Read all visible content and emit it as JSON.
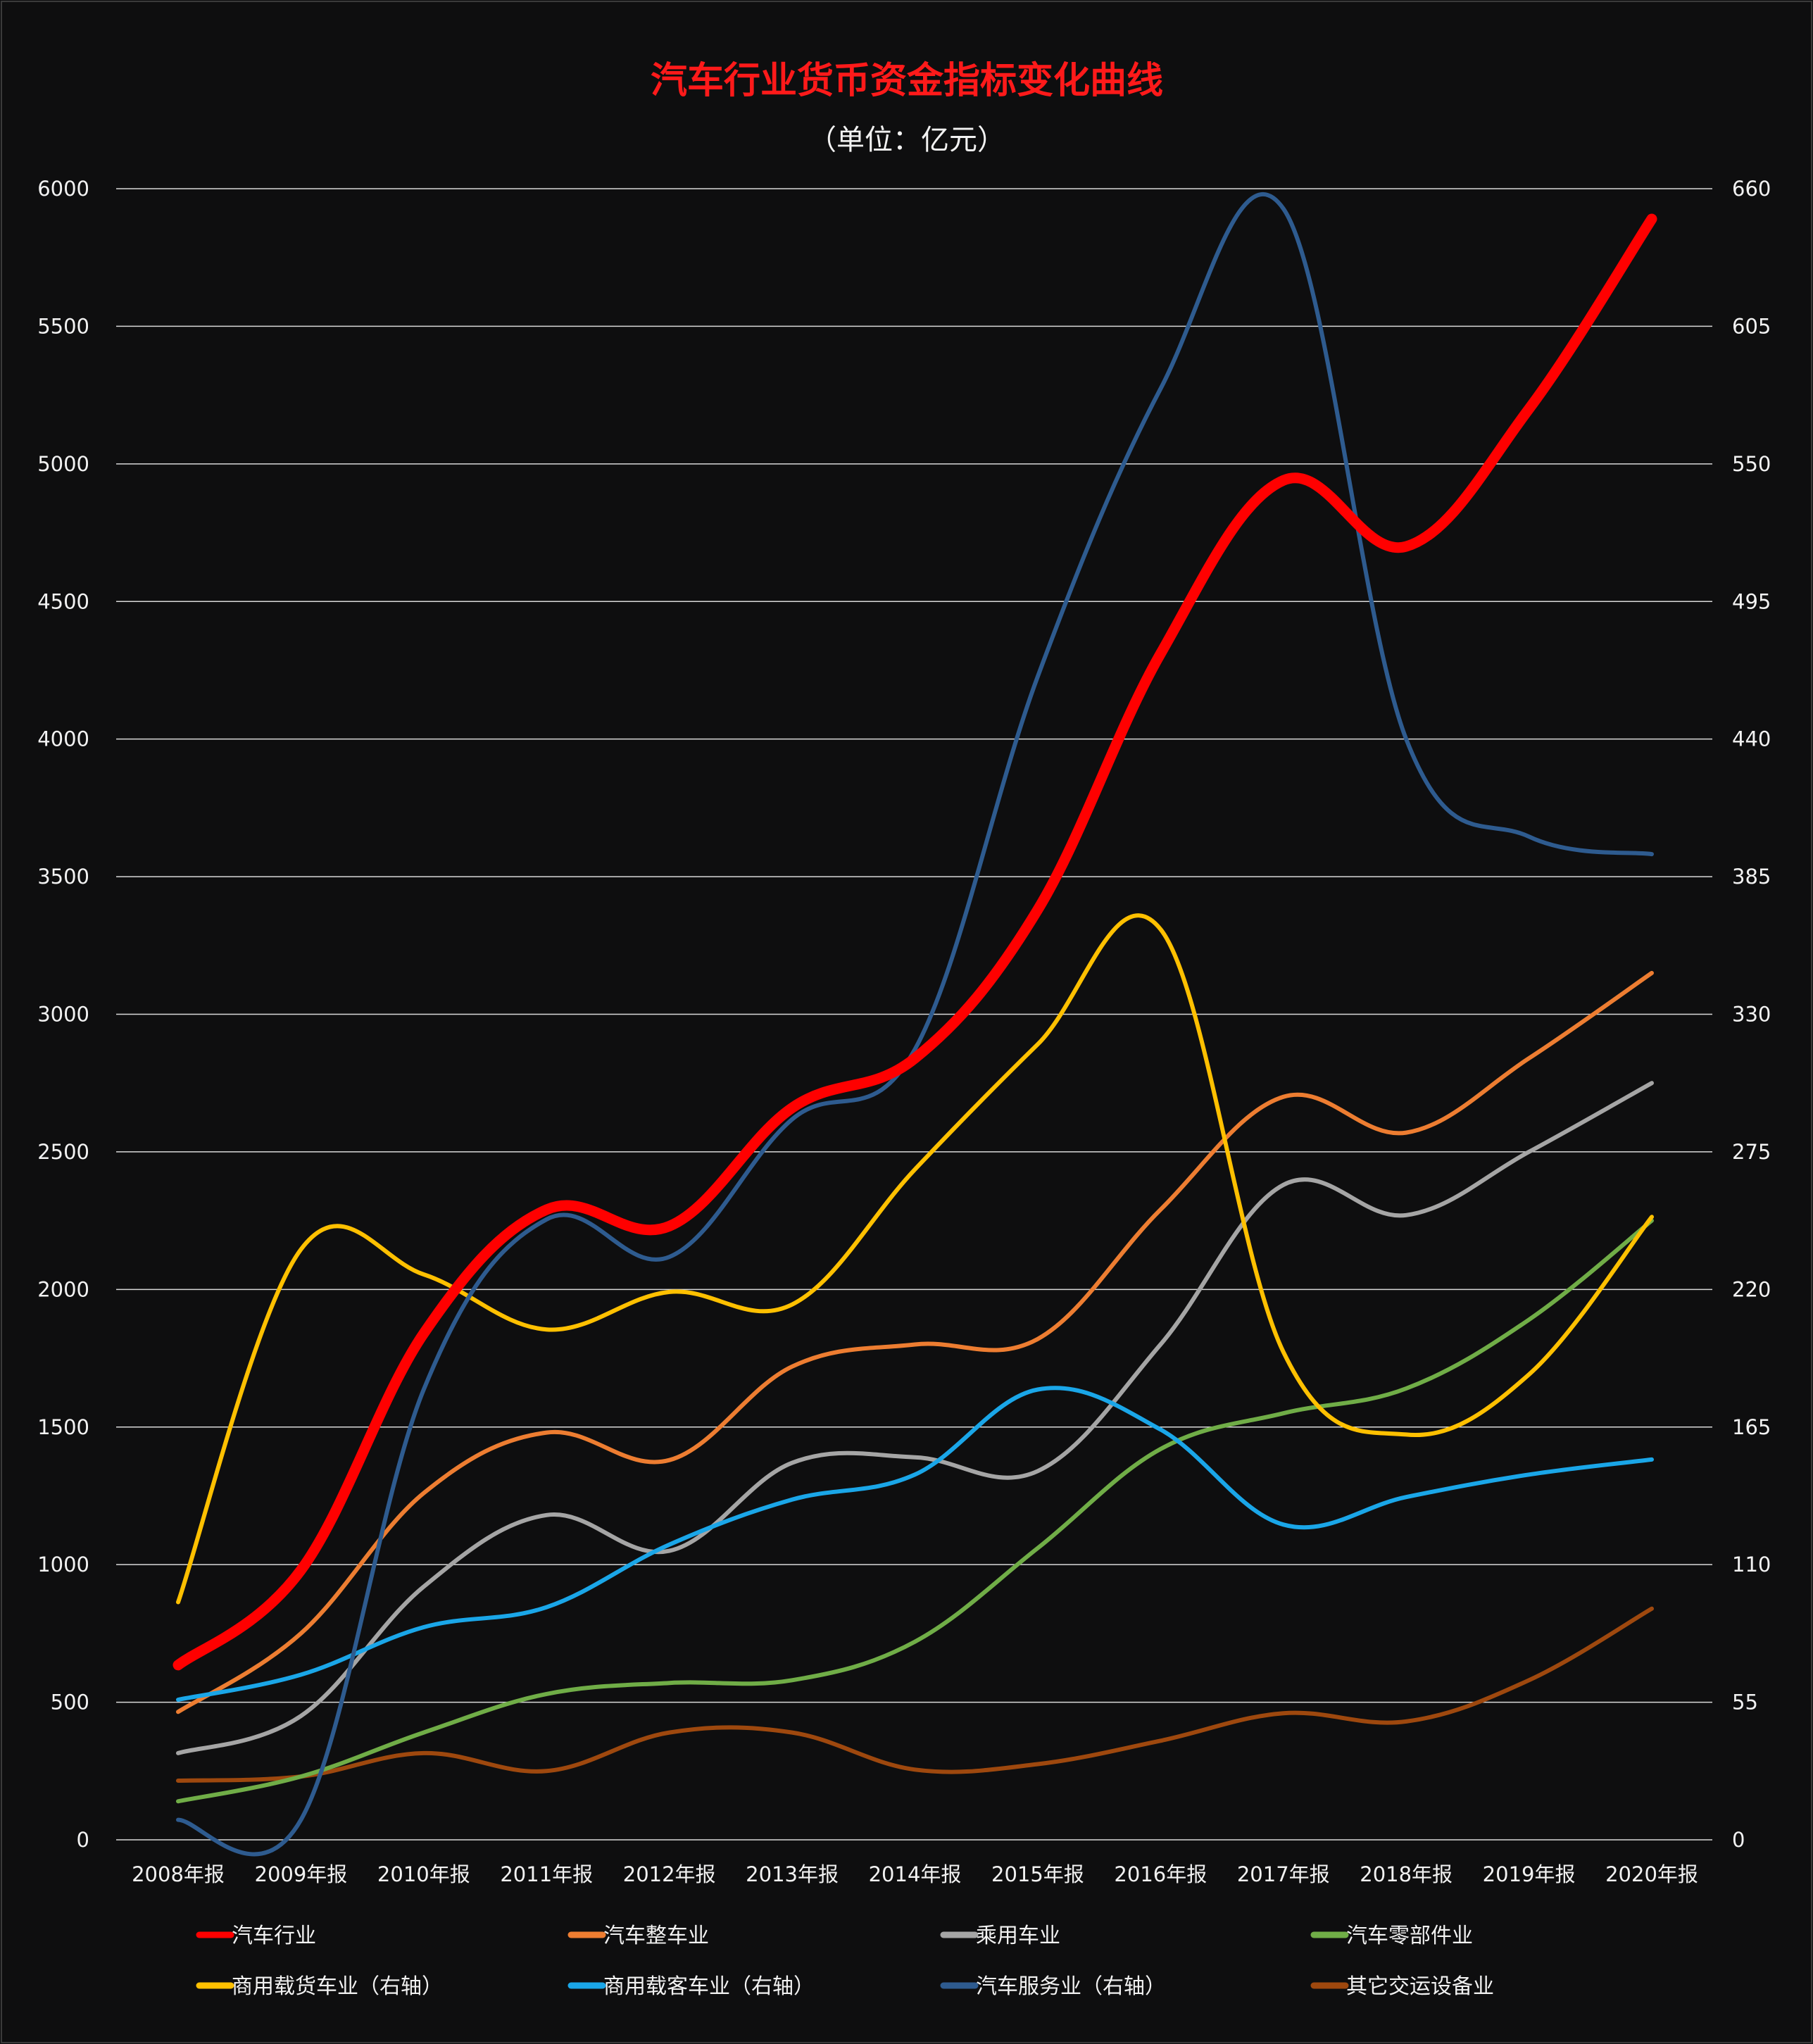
{
  "chart_data": {
    "type": "line",
    "title": "汽车行业货币资金指标变化曲线",
    "subtitle": "（单位：亿元）",
    "categories": [
      "2008年报",
      "2009年报",
      "2010年报",
      "2011年报",
      "2012年报",
      "2013年报",
      "2014年报",
      "2015年报",
      "2016年报",
      "2017年报",
      "2018年报",
      "2019年报",
      "2020年报"
    ],
    "y_left": {
      "ylim": [
        0,
        6000
      ],
      "ticks": [
        "0",
        "500",
        "1000",
        "1500",
        "2000",
        "2500",
        "3000",
        "3500",
        "4000",
        "4500",
        "5000",
        "5500",
        "6000"
      ]
    },
    "y_right": {
      "ylim": [
        0,
        660
      ],
      "ticks": [
        "0",
        "55",
        "110",
        "165",
        "220",
        "275",
        "330",
        "385",
        "440",
        "495",
        "550",
        "605",
        "660"
      ]
    },
    "grid": "horizontal",
    "legend_position": "bottom",
    "series": [
      {
        "name": "汽车行业",
        "axis": "left",
        "color": "#ff0000",
        "values": [
          635,
          980,
          1840,
          2290,
          2230,
          2660,
          2840,
          3380,
          4310,
          4940,
          4700,
          5200,
          5890
        ]
      },
      {
        "name": "汽车整车业",
        "axis": "left",
        "color": "#ed7d31",
        "values": [
          465,
          750,
          1260,
          1480,
          1380,
          1720,
          1800,
          1820,
          2290,
          2700,
          2570,
          2840,
          3150
        ]
      },
      {
        "name": "乘用车业",
        "axis": "left",
        "color": "#a5a5a5",
        "values": [
          315,
          450,
          920,
          1180,
          1050,
          1370,
          1390,
          1340,
          1800,
          2380,
          2270,
          2500,
          2750
        ]
      },
      {
        "name": "汽车零部件业",
        "axis": "left",
        "color": "#70ad47",
        "values": [
          140,
          230,
          390,
          530,
          570,
          580,
          720,
          1060,
          1420,
          1550,
          1640,
          1890,
          2250
        ]
      },
      {
        "name": "商用载货车业（右轴）",
        "axis": "right",
        "color": "#ffc000",
        "values": [
          95,
          236,
          226,
          204,
          219,
          214,
          268,
          318,
          364,
          195,
          162,
          186,
          249
        ]
      },
      {
        "name": "商用载客车业（右轴）",
        "axis": "right",
        "color": "#1aa6e8",
        "values": [
          56,
          66,
          85,
          93,
          118,
          136,
          146,
          180,
          164,
          126,
          137,
          146,
          152
        ]
      },
      {
        "name": "汽车服务业（右轴）",
        "axis": "right",
        "color": "#2e5b8f",
        "values": [
          8,
          8,
          180,
          248,
          233,
          288,
          316,
          465,
          580,
          652,
          440,
          401,
          394
        ]
      },
      {
        "name": "其它交运设备业",
        "axis": "left",
        "color": "#9e480e",
        "values": [
          215,
          230,
          315,
          250,
          390,
          390,
          255,
          275,
          360,
          460,
          430,
          580,
          840
        ]
      }
    ]
  }
}
